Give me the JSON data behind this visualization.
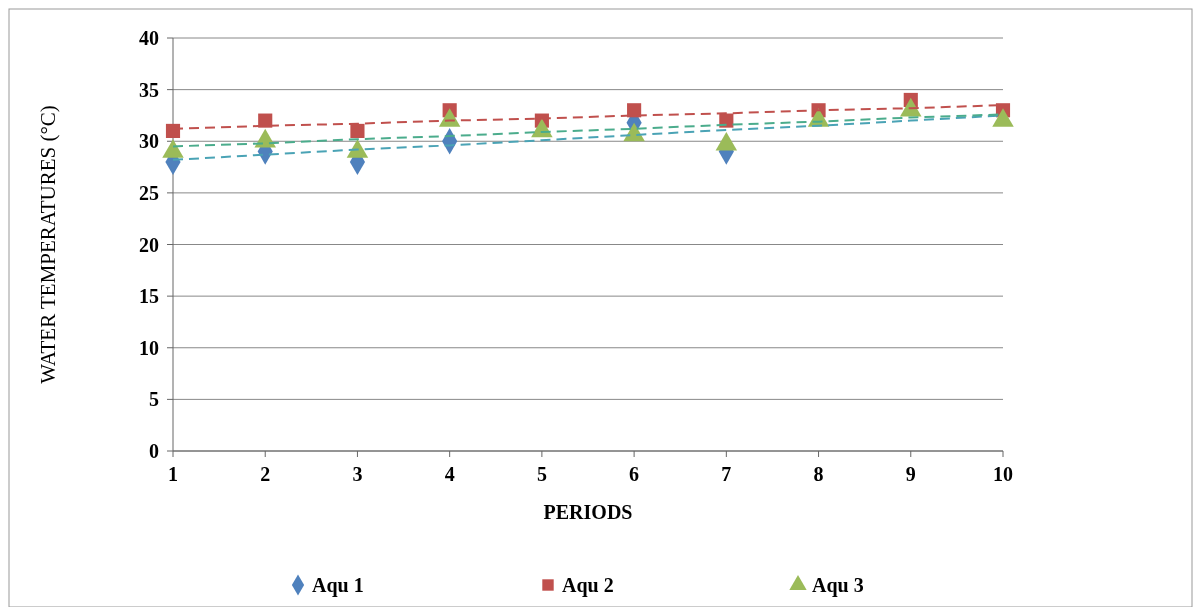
{
  "chart_data": {
    "type": "scatter",
    "xlabel": "PERIODS",
    "ylabel": "WATER TEMPERATURES (°C)",
    "x": [
      1,
      2,
      3,
      4,
      5,
      6,
      7,
      8,
      9,
      10
    ],
    "xlim": [
      1,
      10
    ],
    "xticks": [
      1,
      2,
      3,
      4,
      5,
      6,
      7,
      8,
      9,
      10
    ],
    "ylim": [
      0,
      40
    ],
    "yticks": [
      0,
      5,
      10,
      15,
      20,
      25,
      30,
      35,
      40
    ],
    "grid": "y",
    "legend": "bottom",
    "series": [
      {
        "name": "Aqu 1",
        "color": "#4f81bd",
        "marker": "diamond",
        "values": [
          28,
          29,
          28,
          30,
          null,
          31.8,
          29,
          null,
          null,
          null
        ]
      },
      {
        "name": "Aqu 2",
        "color": "#c0504d",
        "marker": "square",
        "values": [
          31,
          32,
          31,
          33,
          32,
          33,
          32,
          33,
          34,
          33
        ]
      },
      {
        "name": "Aqu 3",
        "color": "#9bbb59",
        "marker": "triangle",
        "values": [
          29,
          30,
          29,
          32,
          31,
          30.6,
          29.7,
          32,
          33,
          32
        ]
      },
      {
        "type": "line",
        "color": "#4aa3b5",
        "line_style": "dashed",
        "values": [
          28.2,
          28.7,
          29.2,
          29.6,
          30.1,
          30.6,
          31.1,
          31.5,
          32.0,
          32.5
        ]
      },
      {
        "type": "line",
        "color": "#c0504d",
        "line_style": "dashed",
        "values": [
          31.2,
          31.5,
          31.7,
          32.0,
          32.2,
          32.5,
          32.7,
          33.0,
          33.2,
          33.5
        ]
      },
      {
        "type": "line",
        "color": "#4bac8c",
        "line_style": "dashed",
        "values": [
          29.5,
          29.8,
          30.2,
          30.5,
          30.9,
          31.2,
          31.6,
          31.9,
          32.3,
          32.6
        ]
      }
    ]
  }
}
